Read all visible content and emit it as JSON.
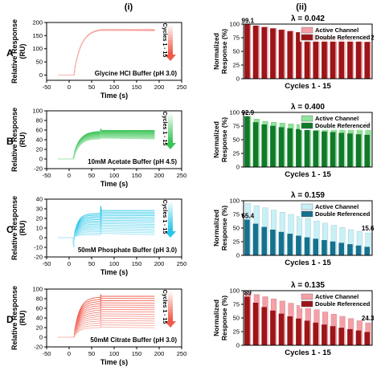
{
  "figure": {
    "col_left": "(i)",
    "col_right": "(ii)"
  },
  "chart_data": [
    {
      "type": "line",
      "row_label": "A",
      "buffer": "Glycine HCl Buffer (pH 3.0)",
      "cycles_label": "Cycles 1 - 15",
      "color": "#f05a4a",
      "xlabel": "Time (s)",
      "ylabel": "Relative Response (RU)",
      "xlim": [
        -50,
        250
      ],
      "ylim": [
        -20,
        200
      ],
      "xticks": [
        -50,
        0,
        50,
        100,
        150,
        200,
        250
      ],
      "yticks": [
        0,
        50,
        100,
        150,
        200
      ],
      "curves": {
        "cycles": 15,
        "t_inject": 10,
        "t_end_assoc": 70,
        "t_end": 190,
        "baseline_top": 0,
        "baseline_spread": 0,
        "plateau_top": 172,
        "plateau_spread": 2,
        "jump_top": 0,
        "jump_spread": 0,
        "curvature": 0.6
      }
    },
    {
      "type": "bar",
      "row_label": "A",
      "lambda": "λ = 0.042",
      "xlabel": "Cycles 1 - 15",
      "ylabel": "Normalized Response (%)",
      "ylim": [
        0,
        100
      ],
      "yticks": [
        0,
        25,
        50,
        75,
        100
      ],
      "categories": [
        1,
        2,
        3,
        4,
        5,
        6,
        7,
        8,
        9,
        10,
        11,
        12,
        13,
        14,
        15
      ],
      "legend_position": "top-right",
      "first_label": "99.1",
      "last_label": "67.2",
      "series": [
        {
          "name": "Active Channel",
          "color": "#f4a0a6",
          "values": [
            99.1,
            97.0,
            94.5,
            92.0,
            89.5,
            87.0,
            85.0,
            82.5,
            80.5,
            78.5,
            76.5,
            74.0,
            72.0,
            69.5,
            67.2
          ]
        },
        {
          "name": "Double Referenced",
          "color": "#9c1518",
          "values": [
            99.1,
            97.0,
            94.5,
            92.0,
            89.5,
            87.0,
            85.0,
            82.5,
            80.5,
            78.5,
            76.5,
            74.0,
            72.0,
            69.5,
            67.2
          ]
        }
      ]
    },
    {
      "type": "line",
      "row_label": "B",
      "buffer": "10mM Acetate Buffer (pH 4.5)",
      "cycles_label": "Cycles 1 - 15",
      "color": "#39c454",
      "xlabel": "Time (s)",
      "ylabel": "Relative Response (RU)",
      "xlim": [
        -50,
        250
      ],
      "ylim": [
        -20,
        100
      ],
      "xticks": [
        -50,
        0,
        50,
        100,
        150,
        200,
        250
      ],
      "yticks": [
        -20,
        0,
        20,
        40,
        60,
        80,
        100
      ],
      "curves": {
        "cycles": 15,
        "t_inject": 10,
        "t_end_assoc": 70,
        "t_end": 190,
        "baseline_top": 8,
        "baseline_spread": 6,
        "plateau_top": 63,
        "plateau_spread": 18,
        "jump_top": 6,
        "jump_spread": 3,
        "curvature": 0.5
      }
    },
    {
      "type": "bar",
      "row_label": "B",
      "lambda": "λ = 0.400",
      "xlabel": "Cycles 1 - 15",
      "ylabel": "Normalized Response (%)",
      "ylim": [
        0,
        100
      ],
      "yticks": [
        0,
        25,
        50,
        75,
        100
      ],
      "categories": [
        1,
        2,
        3,
        4,
        5,
        6,
        7,
        8,
        9,
        10,
        11,
        12,
        13,
        14,
        15
      ],
      "legend_position": "top-right",
      "first_label": "92.9",
      "last_label": "59",
      "series": [
        {
          "name": "Active Channel",
          "color": "#8fe39a",
          "values": [
            92.9,
            88.0,
            83.5,
            82.0,
            80.5,
            79.0,
            78.0,
            77.0,
            76.0,
            75.0,
            74.0,
            73.0,
            72.0,
            71.0,
            70.0
          ]
        },
        {
          "name": "Double Referenced",
          "color": "#117a2a",
          "values": [
            92.9,
            82.0,
            78.0,
            75.5,
            73.0,
            71.0,
            69.5,
            68.0,
            66.5,
            65.0,
            64.0,
            62.5,
            61.5,
            60.0,
            59.0
          ]
        }
      ]
    },
    {
      "type": "line",
      "row_label": "C",
      "buffer": "50mM Phosphate Buffer (pH 3.0)",
      "cycles_label": "Cycles 1 - 15",
      "color": "#29c6e8",
      "xlabel": "Time (s)",
      "ylabel": "Relative Response (RU)",
      "xlim": [
        -50,
        250
      ],
      "ylim": [
        -20,
        40
      ],
      "xticks": [
        -50,
        0,
        50,
        100,
        150,
        200,
        250
      ],
      "yticks": [
        -20,
        -10,
        0,
        10,
        20,
        30,
        40
      ],
      "curves": {
        "cycles": 15,
        "t_inject": 10,
        "t_end_assoc": 70,
        "t_end": 190,
        "baseline_top": 0,
        "baseline_spread": 0,
        "plateau_top": 33,
        "plateau_spread": 26,
        "jump_top": 8,
        "jump_spread": 4,
        "curvature": 0.35,
        "dip": -10
      }
    },
    {
      "type": "bar",
      "row_label": "C",
      "lambda": "λ = 0.159",
      "xlabel": "Cycles 1 - 15",
      "ylabel": "Normalized Response (%)",
      "ylim": [
        0,
        100
      ],
      "yticks": [
        0,
        25,
        50,
        75,
        100
      ],
      "categories": [
        1,
        2,
        3,
        4,
        5,
        6,
        7,
        8,
        9,
        10,
        11,
        12,
        13,
        14,
        15
      ],
      "legend_position": "top-right",
      "first_label": "65.4",
      "last_label": "15.6",
      "series": [
        {
          "name": "Active Channel",
          "color": "#c8f0f7",
          "values": [
            95,
            91,
            87,
            83,
            79,
            75,
            71,
            67,
            63,
            59,
            55,
            51,
            47,
            44,
            41
          ]
        },
        {
          "name": "Double Referenced",
          "color": "#16718f",
          "values": [
            65.4,
            58.0,
            52.0,
            47.0,
            43.0,
            39.5,
            36.0,
            33.0,
            30.5,
            28.0,
            25.5,
            23.0,
            20.5,
            18.0,
            15.6
          ]
        }
      ]
    },
    {
      "type": "line",
      "row_label": "D",
      "buffer": "50mM Citrate Buffer (pH 3.0)",
      "cycles_label": "Cycles 1 - 15",
      "color": "#f05a4a",
      "xlabel": "Time (s)",
      "ylabel": "Relative Response (RU)",
      "xlim": [
        -50,
        250
      ],
      "ylim": [
        -20,
        100
      ],
      "xticks": [
        -50,
        0,
        50,
        100,
        150,
        200,
        250
      ],
      "yticks": [
        -20,
        0,
        20,
        40,
        60,
        80,
        100
      ],
      "curves": {
        "cycles": 15,
        "t_inject": 10,
        "t_end_assoc": 70,
        "t_end": 190,
        "baseline_top": 0,
        "baseline_spread": 0,
        "plateau_top": 88,
        "plateau_spread": 65,
        "jump_top": 5,
        "jump_spread": 2,
        "curvature": 0.45
      }
    },
    {
      "type": "bar",
      "row_label": "D",
      "lambda": "λ = 0.135",
      "xlabel": "Cycles 1 - 15",
      "ylabel": "Normalized Response (%)",
      "ylim": [
        0,
        100
      ],
      "yticks": [
        0,
        25,
        50,
        75,
        100
      ],
      "categories": [
        1,
        2,
        3,
        4,
        5,
        6,
        7,
        8,
        9,
        10,
        11,
        12,
        13,
        14,
        15
      ],
      "legend_position": "top-right",
      "first_label": "89",
      "last_label": "24.3",
      "series": [
        {
          "name": "Active Channel",
          "color": "#f4a0a6",
          "values": [
            96,
            93,
            89,
            85,
            81,
            77,
            73,
            69,
            65,
            61,
            57,
            53,
            49,
            45,
            41
          ]
        },
        {
          "name": "Double Referenced",
          "color": "#9c1518",
          "values": [
            89.0,
            78.0,
            70.0,
            63.5,
            58.0,
            53.0,
            49.0,
            45.0,
            41.5,
            38.0,
            35.0,
            32.0,
            29.5,
            27.0,
            24.3
          ]
        }
      ]
    }
  ]
}
